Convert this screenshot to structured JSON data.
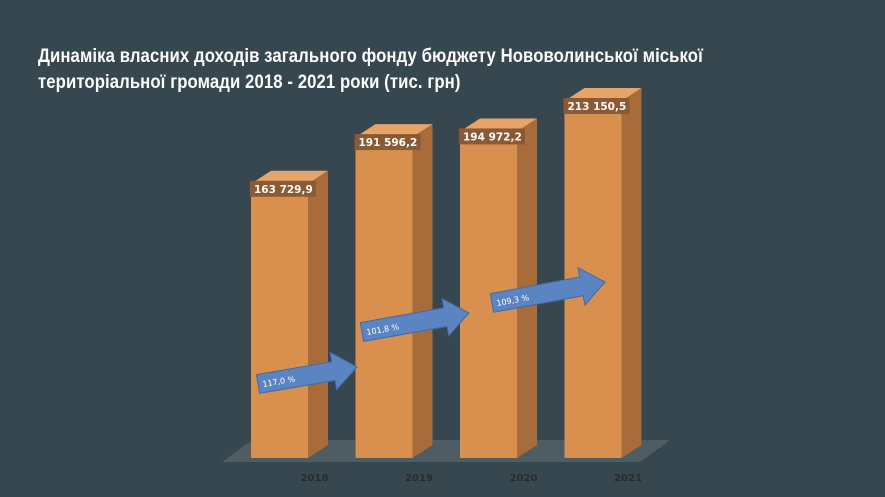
{
  "title": "Динаміка власних доходів загального фонду бюджету Нововолинської міської територіальної громади 2018 - 2021 роки (тис. грн)",
  "colors": {
    "background": "#37474f",
    "bar_front": "#d9904f",
    "bar_side": "#a86c3a",
    "bar_top": "#e6a468",
    "label_box": "#8a5a34",
    "floor": "#4d5d63",
    "arrow": "#5b85c2",
    "arrow_edge": "#3f6aa8"
  },
  "chart_data": {
    "type": "bar",
    "title": "Динаміка власних доходів загального фонду бюджету Нововолинської міської територіальної громади 2018 - 2021 роки (тис. грн)",
    "categories": [
      "2018",
      "2019",
      "2020",
      "2021"
    ],
    "values": [
      163729.9,
      191596.2,
      194972.2,
      213150.5
    ],
    "value_labels": [
      "163 729,9",
      "191 596,2",
      "194 972,2",
      "213 150,5"
    ],
    "growth_arrows": [
      {
        "label": "117,0 %"
      },
      {
        "label": "101,8 %"
      },
      {
        "label": "109,3 %"
      }
    ],
    "xlabel": "",
    "ylabel": "",
    "ylim": [
      0,
      213150.5
    ],
    "grid": false,
    "legend": "none",
    "style": "3d-column"
  }
}
